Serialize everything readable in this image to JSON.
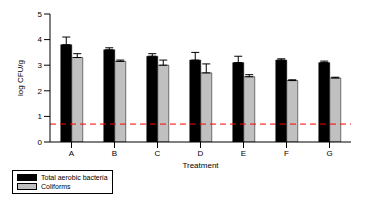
{
  "chart_data": {
    "type": "bar",
    "x_label": "Treatment",
    "y_label": "log CFU/g",
    "categories": [
      "A",
      "B",
      "C",
      "D",
      "E",
      "F",
      "G"
    ],
    "series": [
      {
        "name": "Total aerobic bacteria",
        "color": "#000000",
        "values": [
          3.8,
          3.6,
          3.35,
          3.2,
          3.1,
          3.2,
          3.1
        ],
        "errors": [
          0.3,
          0.08,
          0.1,
          0.3,
          0.25,
          0.05,
          0.06
        ]
      },
      {
        "name": "Coliforms",
        "color": "#c0c0c0",
        "values": [
          3.3,
          3.15,
          3.0,
          2.7,
          2.55,
          2.4,
          2.5
        ],
        "errors": [
          0.15,
          0.05,
          0.2,
          0.35,
          0.08,
          0.03,
          0.03
        ]
      }
    ],
    "ylim": [
      0,
      5
    ],
    "yticks": [
      0,
      1,
      2,
      3,
      4,
      5
    ],
    "grid": false,
    "legend": "bottom-left",
    "reference_line": {
      "value": 0.7,
      "color": "#ff0000",
      "line_style": "dashed"
    }
  }
}
